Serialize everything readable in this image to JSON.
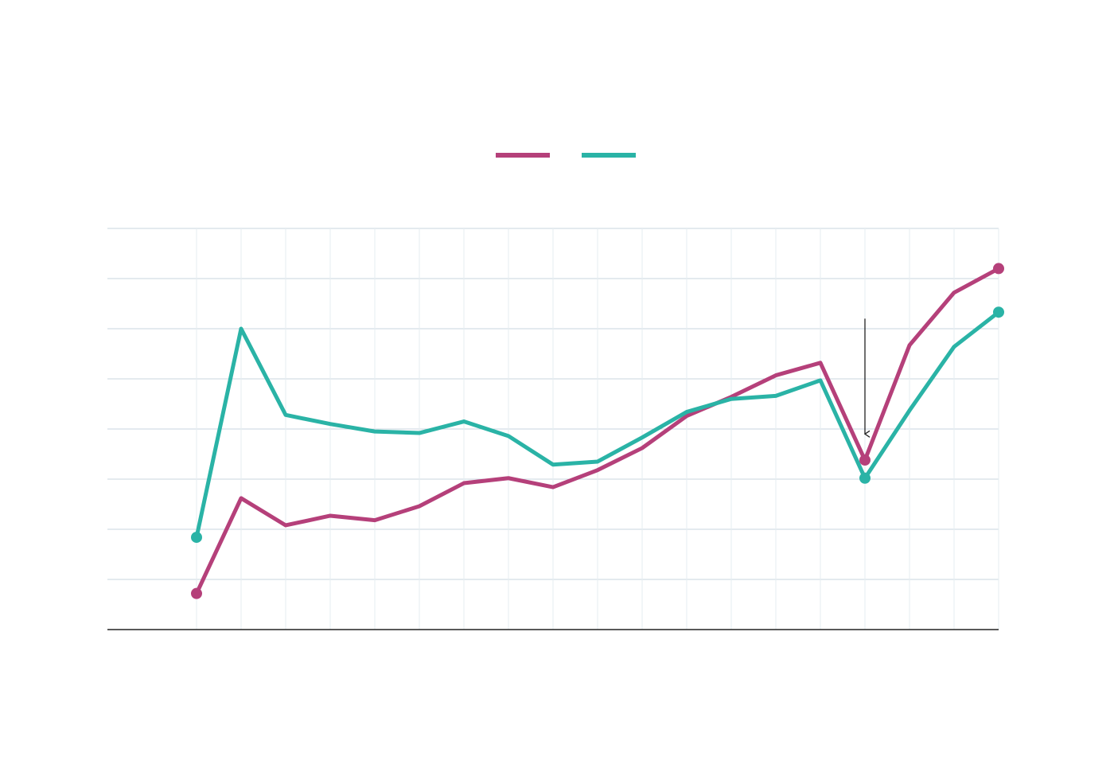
{
  "chart_data": {
    "type": "line",
    "title": "",
    "xlabel": "",
    "ylabel": "",
    "x": [
      1,
      2,
      3,
      4,
      5,
      6,
      7,
      8,
      9,
      10,
      11,
      12,
      13,
      14,
      15,
      16,
      17,
      18,
      19
    ],
    "xlim": [
      -1,
      19
    ],
    "ylim": [
      0,
      8
    ],
    "grid": true,
    "legend": "top-center",
    "series": [
      {
        "color": "#b5407a",
        "values": [
          0.72,
          2.62,
          2.08,
          2.27,
          2.18,
          2.46,
          2.92,
          3.02,
          2.84,
          3.18,
          3.62,
          4.26,
          4.64,
          5.07,
          5.32,
          3.38,
          5.67,
          6.72,
          7.2
        ],
        "endpoint_markers": true
      },
      {
        "color": "#2ab3a6",
        "values": [
          1.84,
          6.0,
          4.28,
          4.1,
          3.95,
          3.92,
          4.15,
          3.86,
          3.29,
          3.35,
          3.83,
          4.34,
          4.6,
          4.66,
          4.97,
          3.02,
          4.37,
          5.64,
          6.33
        ],
        "endpoint_markers": true
      }
    ],
    "annotations": [
      {
        "type": "arrow",
        "x": 16,
        "y_from": 6.2,
        "y_to": 3.9
      }
    ]
  }
}
